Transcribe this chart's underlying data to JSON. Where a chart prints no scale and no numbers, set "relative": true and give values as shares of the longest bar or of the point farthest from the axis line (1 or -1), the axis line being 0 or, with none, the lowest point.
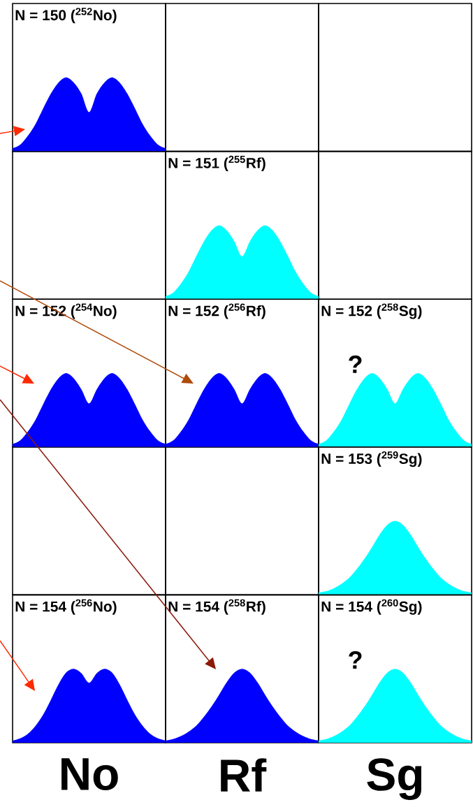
{
  "chart_data": [
    {
      "type": "area",
      "title": "N = 150 ($^{252}$No)",
      "relative": true,
      "color": "#0000ff",
      "categories": [
        null,
        null,
        null,
        null,
        null,
        null,
        null,
        null,
        null,
        null,
        null,
        null,
        null,
        null,
        null,
        null,
        null,
        null,
        null,
        null,
        null
      ],
      "values": [
        0.04,
        0.09,
        0.21,
        0.37,
        0.58,
        0.78,
        0.93,
        1.0,
        0.93,
        0.78,
        0.53,
        0.78,
        0.93,
        1.0,
        0.93,
        0.78,
        0.58,
        0.37,
        0.21,
        0.09,
        0.04
      ]
    },
    {
      "type": "area",
      "title": "N = 151 ($^{255}$Rf)",
      "relative": true,
      "color": "#00ffff",
      "categories": [
        null,
        null,
        null,
        null,
        null,
        null,
        null,
        null,
        null,
        null,
        null,
        null,
        null,
        null,
        null,
        null,
        null,
        null,
        null,
        null,
        null
      ],
      "values": [
        0.04,
        0.09,
        0.21,
        0.37,
        0.58,
        0.78,
        0.93,
        1.0,
        0.93,
        0.78,
        0.58,
        0.78,
        0.93,
        1.0,
        0.93,
        0.78,
        0.58,
        0.37,
        0.21,
        0.09,
        0.04
      ]
    },
    {
      "type": "area",
      "title": "N = 152 ($^{254}$No)",
      "relative": true,
      "color": "#0000ff",
      "categories": [
        null,
        null,
        null,
        null,
        null,
        null,
        null,
        null,
        null,
        null,
        null,
        null,
        null,
        null,
        null,
        null,
        null,
        null,
        null,
        null,
        null
      ],
      "values": [
        0.04,
        0.09,
        0.21,
        0.37,
        0.58,
        0.78,
        0.93,
        1.0,
        0.93,
        0.78,
        0.59,
        0.78,
        0.93,
        1.0,
        0.93,
        0.78,
        0.58,
        0.37,
        0.21,
        0.09,
        0.04
      ]
    },
    {
      "type": "area",
      "title": "N = 152 ($^{256}$Rf)",
      "relative": true,
      "color": "#0000ff",
      "categories": [
        null,
        null,
        null,
        null,
        null,
        null,
        null,
        null,
        null,
        null,
        null,
        null,
        null,
        null,
        null,
        null,
        null,
        null,
        null,
        null,
        null
      ],
      "values": [
        0.04,
        0.09,
        0.21,
        0.37,
        0.58,
        0.78,
        0.93,
        1.0,
        0.93,
        0.78,
        0.59,
        0.78,
        0.93,
        1.0,
        0.93,
        0.78,
        0.58,
        0.37,
        0.21,
        0.09,
        0.04
      ]
    },
    {
      "type": "area",
      "title": "N = 152 ($^{258}$Sg)",
      "relative": true,
      "color": "#00ffff",
      "annotations": [
        "?"
      ],
      "categories": [
        null,
        null,
        null,
        null,
        null,
        null,
        null,
        null,
        null,
        null,
        null,
        null,
        null,
        null,
        null,
        null,
        null,
        null,
        null,
        null,
        null
      ],
      "values": [
        0.04,
        0.09,
        0.21,
        0.37,
        0.58,
        0.78,
        0.93,
        1.0,
        0.93,
        0.78,
        0.59,
        0.78,
        0.93,
        1.0,
        0.93,
        0.78,
        0.58,
        0.37,
        0.21,
        0.09,
        0.04
      ]
    },
    {
      "type": "area",
      "title": "N = 153 ($^{259}$Sg)",
      "relative": true,
      "color": "#00ffff",
      "categories": [
        null,
        null,
        null,
        null,
        null,
        null,
        null,
        null,
        null,
        null,
        null,
        null,
        null,
        null,
        null,
        null,
        null,
        null,
        null,
        null,
        null
      ],
      "values": [
        0.03,
        0.05,
        0.09,
        0.15,
        0.23,
        0.35,
        0.49,
        0.65,
        0.82,
        0.95,
        1.0,
        0.95,
        0.82,
        0.65,
        0.49,
        0.35,
        0.23,
        0.15,
        0.09,
        0.05,
        0.03
      ]
    },
    {
      "type": "area",
      "title": "N = 154 ($^{256}$No)",
      "xlabel": "No",
      "relative": true,
      "color": "#0000ff",
      "categories": [
        null,
        null,
        null,
        null,
        null,
        null,
        null,
        null,
        null,
        null,
        null,
        null,
        null,
        null,
        null,
        null,
        null,
        null,
        null,
        null,
        null
      ],
      "values": [
        0.03,
        0.06,
        0.12,
        0.23,
        0.38,
        0.58,
        0.79,
        0.95,
        1.0,
        0.94,
        0.81,
        0.94,
        1.0,
        0.95,
        0.79,
        0.58,
        0.38,
        0.23,
        0.12,
        0.06,
        0.03
      ]
    },
    {
      "type": "area",
      "title": "N = 154 ($^{258}$Rf)",
      "xlabel": "Rf",
      "relative": true,
      "color": "#0000ff",
      "categories": [
        null,
        null,
        null,
        null,
        null,
        null,
        null,
        null,
        null,
        null,
        null,
        null,
        null,
        null,
        null,
        null,
        null,
        null,
        null,
        null,
        null
      ],
      "values": [
        0.03,
        0.05,
        0.09,
        0.15,
        0.23,
        0.35,
        0.49,
        0.65,
        0.82,
        0.95,
        1.0,
        0.95,
        0.82,
        0.65,
        0.49,
        0.35,
        0.23,
        0.15,
        0.09,
        0.05,
        0.03
      ]
    },
    {
      "type": "area",
      "title": "N = 154 ($^{260}$Sg)",
      "xlabel": "Sg",
      "relative": true,
      "color": "#00ffff",
      "annotations": [
        "?"
      ],
      "categories": [
        null,
        null,
        null,
        null,
        null,
        null,
        null,
        null,
        null,
        null,
        null,
        null,
        null,
        null,
        null,
        null,
        null,
        null,
        null,
        null,
        null
      ],
      "values": [
        0.03,
        0.05,
        0.09,
        0.15,
        0.23,
        0.35,
        0.49,
        0.65,
        0.82,
        0.95,
        1.0,
        0.95,
        0.82,
        0.65,
        0.49,
        0.35,
        0.23,
        0.15,
        0.09,
        0.05,
        0.03
      ]
    }
  ]
}
